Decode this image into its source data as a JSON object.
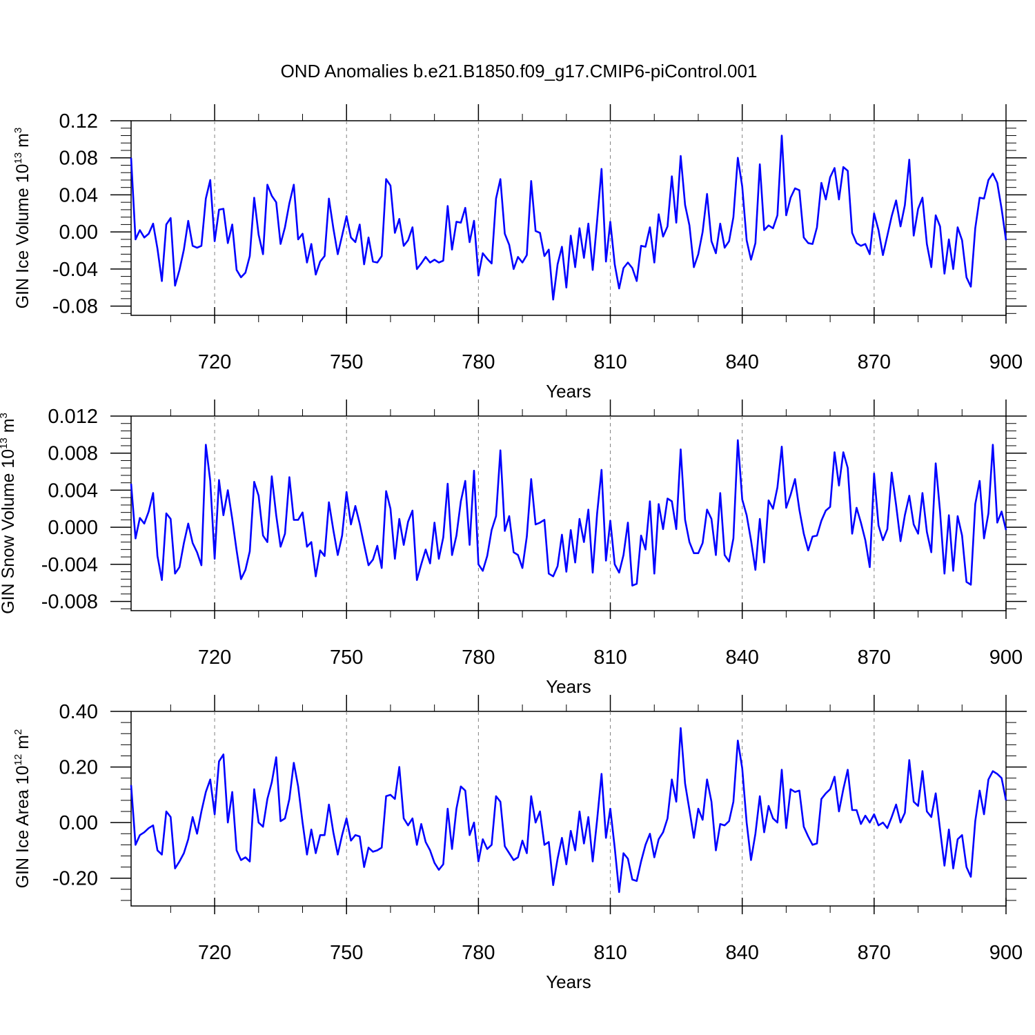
{
  "figure": {
    "title": "OND Anomalies b.e21.B1850.f09_g17.CMIP6-piControl.001"
  },
  "colors": {
    "line": "#0000ff",
    "axis": "#000000",
    "grid": "#808080"
  },
  "chart_data": [
    {
      "type": "line",
      "title": "OND Anomalies b.e21.B1850.f09_g17.CMIP6-piControl.001",
      "xlabel": "Years",
      "ylabel": "GIN Ice Volume 10",
      "ylabel_exp": "13",
      "ylabel_unit": " m",
      "ylabel_unit_exp": "3",
      "xlim": [
        701,
        900
      ],
      "ylim": [
        -0.09,
        0.12
      ],
      "xticks": [
        720,
        750,
        780,
        810,
        840,
        870,
        900
      ],
      "xtick_labels": [
        "720",
        "750",
        "780",
        "810",
        "840",
        "870",
        "900"
      ],
      "yticks": [
        -0.08,
        -0.04,
        0.0,
        0.04,
        0.08,
        0.12
      ],
      "ytick_labels": [
        "-0.08",
        "-0.04",
        "0.00",
        "0.04",
        "0.08",
        "0.12"
      ],
      "grid": "vertical dashed at major x ticks",
      "series": [
        {
          "name": "GIN Ice Volume",
          "x_start": 701,
          "values": [
            0.08,
            -0.008,
            0.002,
            -0.006,
            -0.002,
            0.009,
            -0.018,
            -0.053,
            0.008,
            0.015,
            -0.058,
            -0.041,
            -0.019,
            0.012,
            -0.015,
            -0.017,
            -0.015,
            0.036,
            0.056,
            -0.01,
            0.024,
            0.025,
            -0.012,
            0.008,
            -0.041,
            -0.049,
            -0.044,
            -0.026,
            0.037,
            -0.003,
            -0.024,
            0.051,
            0.039,
            0.032,
            -0.013,
            0.005,
            0.031,
            0.051,
            -0.008,
            -0.002,
            -0.033,
            -0.013,
            -0.046,
            -0.032,
            -0.026,
            0.036,
            0.004,
            -0.024,
            -0.004,
            0.017,
            -0.006,
            -0.011,
            0.008,
            -0.035,
            -0.006,
            -0.032,
            -0.033,
            -0.026,
            0.057,
            0.05,
            -0.001,
            0.014,
            -0.015,
            -0.009,
            0.005,
            -0.04,
            -0.034,
            -0.027,
            -0.033,
            -0.03,
            -0.033,
            -0.031,
            0.028,
            -0.019,
            0.011,
            0.01,
            0.026,
            -0.011,
            0.012,
            -0.047,
            -0.023,
            -0.029,
            -0.034,
            0.036,
            0.057,
            -0.002,
            -0.014,
            -0.04,
            -0.027,
            -0.033,
            -0.025,
            0.055,
            0.001,
            -0.001,
            -0.026,
            -0.019,
            -0.073,
            -0.035,
            -0.016,
            -0.06,
            -0.004,
            -0.038,
            0.004,
            -0.028,
            0.009,
            -0.041,
            0.012,
            0.068,
            -0.032,
            0.011,
            -0.035,
            -0.061,
            -0.039,
            -0.033,
            -0.039,
            -0.053,
            -0.015,
            -0.016,
            0.005,
            -0.033,
            0.019,
            -0.005,
            0.006,
            0.06,
            0.01,
            0.082,
            0.029,
            0.007,
            -0.038,
            -0.024,
            0.0,
            0.041,
            -0.01,
            -0.023,
            0.009,
            -0.017,
            -0.01,
            0.016,
            0.08,
            0.049,
            -0.009,
            -0.03,
            -0.012,
            0.073,
            0.002,
            0.007,
            0.004,
            0.018,
            0.104,
            0.018,
            0.037,
            0.047,
            0.045,
            -0.006,
            -0.012,
            -0.013,
            0.005,
            0.053,
            0.035,
            0.059,
            0.069,
            0.035,
            0.07,
            0.066,
            -0.001,
            -0.012,
            -0.015,
            -0.013,
            -0.024,
            0.02,
            0.002,
            -0.025,
            -0.004,
            0.017,
            0.034,
            0.006,
            0.029,
            0.078,
            -0.004,
            0.025,
            0.037,
            -0.013,
            -0.038,
            0.018,
            0.006,
            -0.045,
            -0.008,
            -0.04,
            0.005,
            -0.009,
            -0.049,
            -0.059,
            0.004,
            0.037,
            0.036,
            0.056,
            0.063,
            0.053,
            0.025,
            -0.009
          ]
        }
      ]
    },
    {
      "type": "line",
      "xlabel": "Years",
      "ylabel": "GIN Snow Volume 10",
      "ylabel_exp": "13",
      "ylabel_unit": " m",
      "ylabel_unit_exp": "3",
      "xlim": [
        701,
        900
      ],
      "ylim": [
        -0.009,
        0.012
      ],
      "xticks": [
        720,
        750,
        780,
        810,
        840,
        870,
        900
      ],
      "xtick_labels": [
        "720",
        "750",
        "780",
        "810",
        "840",
        "870",
        "900"
      ],
      "yticks": [
        -0.008,
        -0.004,
        0.0,
        0.004,
        0.008,
        0.012
      ],
      "ytick_labels": [
        "-0.008",
        "-0.004",
        "0.000",
        "0.004",
        "0.008",
        "0.012"
      ],
      "grid": "vertical dashed at major x ticks",
      "series": [
        {
          "name": "GIN Snow Volume",
          "x_start": 701,
          "values": [
            0.0047,
            -0.0012,
            0.001,
            0.0004,
            0.0017,
            0.0037,
            -0.0031,
            -0.0057,
            0.0015,
            0.0009,
            -0.005,
            -0.0043,
            -0.0017,
            0.0004,
            -0.0017,
            -0.0027,
            -0.0041,
            0.0089,
            0.005,
            -0.0034,
            0.0051,
            0.0013,
            0.004,
            0.0009,
            -0.0025,
            -0.0056,
            -0.0046,
            -0.0026,
            0.0049,
            0.0034,
            -0.0009,
            -0.0016,
            0.0055,
            0.0013,
            -0.0021,
            -0.0007,
            0.0054,
            0.0008,
            0.0008,
            0.0016,
            -0.0021,
            -0.0016,
            -0.0053,
            -0.0025,
            -0.0031,
            0.0027,
            -0.0003,
            -0.003,
            -0.0009,
            0.0038,
            0.0003,
            0.0023,
            0.0004,
            -0.0019,
            -0.0041,
            -0.0035,
            -0.002,
            -0.0044,
            0.0039,
            0.002,
            -0.0034,
            0.0009,
            -0.0019,
            0.0006,
            0.0018,
            -0.0057,
            -0.004,
            -0.0024,
            -0.0039,
            0.0005,
            -0.0034,
            -0.0011,
            0.0047,
            -0.003,
            -0.0009,
            0.0028,
            0.005,
            -0.0019,
            0.0061,
            -0.004,
            -0.0047,
            -0.0031,
            -0.0003,
            0.0012,
            0.0083,
            -0.0004,
            0.0012,
            -0.0027,
            -0.003,
            -0.0044,
            -0.001,
            0.0052,
            0.0003,
            0.0005,
            0.0008,
            -0.005,
            -0.0053,
            -0.0042,
            -0.0008,
            -0.0048,
            -0.0003,
            -0.0038,
            0.0009,
            -0.0016,
            0.0019,
            -0.0049,
            0.0015,
            0.0062,
            -0.0036,
            0.0007,
            -0.004,
            -0.0049,
            -0.003,
            0.0005,
            -0.0063,
            -0.0061,
            -0.0009,
            -0.0024,
            0.0028,
            -0.005,
            0.0025,
            -0.0002,
            0.0031,
            0.0028,
            -0.0002,
            0.0084,
            0.0008,
            -0.0016,
            -0.0028,
            -0.0028,
            -0.0017,
            0.0019,
            0.0009,
            -0.003,
            0.0037,
            -0.003,
            -0.0037,
            -0.0012,
            0.0094,
            0.003,
            0.0013,
            -0.0014,
            -0.0046,
            0.0009,
            -0.0038,
            0.0029,
            0.002,
            0.0043,
            0.0087,
            0.0021,
            0.0035,
            0.0052,
            0.0019,
            -0.0007,
            -0.0025,
            -0.001,
            -0.0009,
            0.0007,
            0.0018,
            0.0022,
            0.0081,
            0.0045,
            0.0081,
            0.0064,
            -0.0007,
            0.0021,
            0.0005,
            -0.0014,
            -0.0043,
            0.0058,
            0.0002,
            -0.0014,
            -0.0002,
            0.0059,
            0.0024,
            -0.0015,
            0.0013,
            0.0034,
            0.0003,
            -0.0007,
            0.0037,
            -0.0005,
            -0.0027,
            0.0069,
            0.0017,
            -0.005,
            0.0013,
            -0.0047,
            0.0012,
            -0.0009,
            -0.0059,
            -0.0062,
            0.0025,
            0.005,
            -0.0012,
            0.0015,
            0.0089,
            0.0005,
            0.0017,
            -0.0003
          ]
        }
      ]
    },
    {
      "type": "line",
      "xlabel": "Years",
      "ylabel": "GIN Ice Area 10",
      "ylabel_exp": "12",
      "ylabel_unit": " m",
      "ylabel_unit_exp": "2",
      "xlim": [
        701,
        900
      ],
      "ylim": [
        -0.3,
        0.4
      ],
      "xticks": [
        720,
        750,
        780,
        810,
        840,
        870,
        900
      ],
      "xtick_labels": [
        "720",
        "750",
        "780",
        "810",
        "840",
        "870",
        "900"
      ],
      "yticks": [
        -0.2,
        0.0,
        0.2,
        0.4
      ],
      "ytick_labels": [
        "-0.20",
        "0.00",
        "0.20",
        "0.40"
      ],
      "grid": "vertical dashed at major x ticks",
      "series": [
        {
          "name": "GIN Ice Area",
          "x_start": 701,
          "values": [
            0.135,
            -0.08,
            -0.045,
            -0.035,
            -0.02,
            -0.01,
            -0.1,
            -0.115,
            0.04,
            0.02,
            -0.165,
            -0.14,
            -0.11,
            -0.06,
            0.02,
            -0.04,
            0.04,
            0.11,
            0.155,
            0.03,
            0.22,
            0.245,
            0.0,
            0.11,
            -0.1,
            -0.135,
            -0.125,
            -0.14,
            0.12,
            0.0,
            -0.015,
            0.085,
            0.145,
            0.235,
            0.005,
            0.015,
            0.085,
            0.215,
            0.13,
            0.0,
            -0.115,
            -0.025,
            -0.11,
            -0.045,
            -0.045,
            0.065,
            -0.035,
            -0.115,
            -0.045,
            0.015,
            -0.065,
            -0.045,
            -0.05,
            -0.16,
            -0.09,
            -0.105,
            -0.1,
            -0.09,
            0.095,
            0.1,
            0.085,
            0.2,
            0.015,
            -0.01,
            0.015,
            -0.08,
            -0.005,
            -0.07,
            -0.1,
            -0.145,
            -0.17,
            -0.15,
            0.05,
            -0.095,
            0.05,
            0.13,
            0.115,
            -0.045,
            0.0,
            -0.14,
            -0.06,
            -0.095,
            -0.08,
            0.095,
            0.075,
            -0.085,
            -0.11,
            -0.135,
            -0.125,
            -0.065,
            -0.11,
            0.095,
            0.0,
            0.04,
            -0.08,
            -0.07,
            -0.225,
            -0.13,
            -0.055,
            -0.15,
            -0.03,
            -0.1,
            0.04,
            -0.075,
            0.02,
            -0.14,
            0.01,
            0.175,
            -0.055,
            0.05,
            -0.09,
            -0.25,
            -0.11,
            -0.13,
            -0.205,
            -0.21,
            -0.14,
            -0.08,
            -0.04,
            -0.125,
            -0.06,
            -0.035,
            0.015,
            0.155,
            0.075,
            0.34,
            0.14,
            0.045,
            -0.055,
            0.05,
            0.01,
            0.155,
            0.075,
            -0.1,
            -0.005,
            -0.01,
            0.005,
            0.075,
            0.295,
            0.195,
            0.0,
            -0.135,
            -0.04,
            0.095,
            -0.035,
            0.06,
            0.015,
            0.0,
            0.19,
            -0.02,
            0.12,
            0.11,
            0.115,
            -0.015,
            -0.05,
            -0.08,
            -0.075,
            0.085,
            0.105,
            0.12,
            0.165,
            0.04,
            0.12,
            0.19,
            0.045,
            0.045,
            -0.005,
            0.025,
            0.0,
            0.03,
            -0.01,
            0.0,
            -0.02,
            0.02,
            0.065,
            0.0,
            0.035,
            0.225,
            0.075,
            0.06,
            0.185,
            0.04,
            0.02,
            0.105,
            -0.025,
            -0.155,
            -0.025,
            -0.165,
            -0.06,
            -0.045,
            -0.16,
            -0.195,
            0.005,
            0.115,
            0.03,
            0.155,
            0.185,
            0.175,
            0.16,
            0.08
          ]
        }
      ]
    }
  ]
}
